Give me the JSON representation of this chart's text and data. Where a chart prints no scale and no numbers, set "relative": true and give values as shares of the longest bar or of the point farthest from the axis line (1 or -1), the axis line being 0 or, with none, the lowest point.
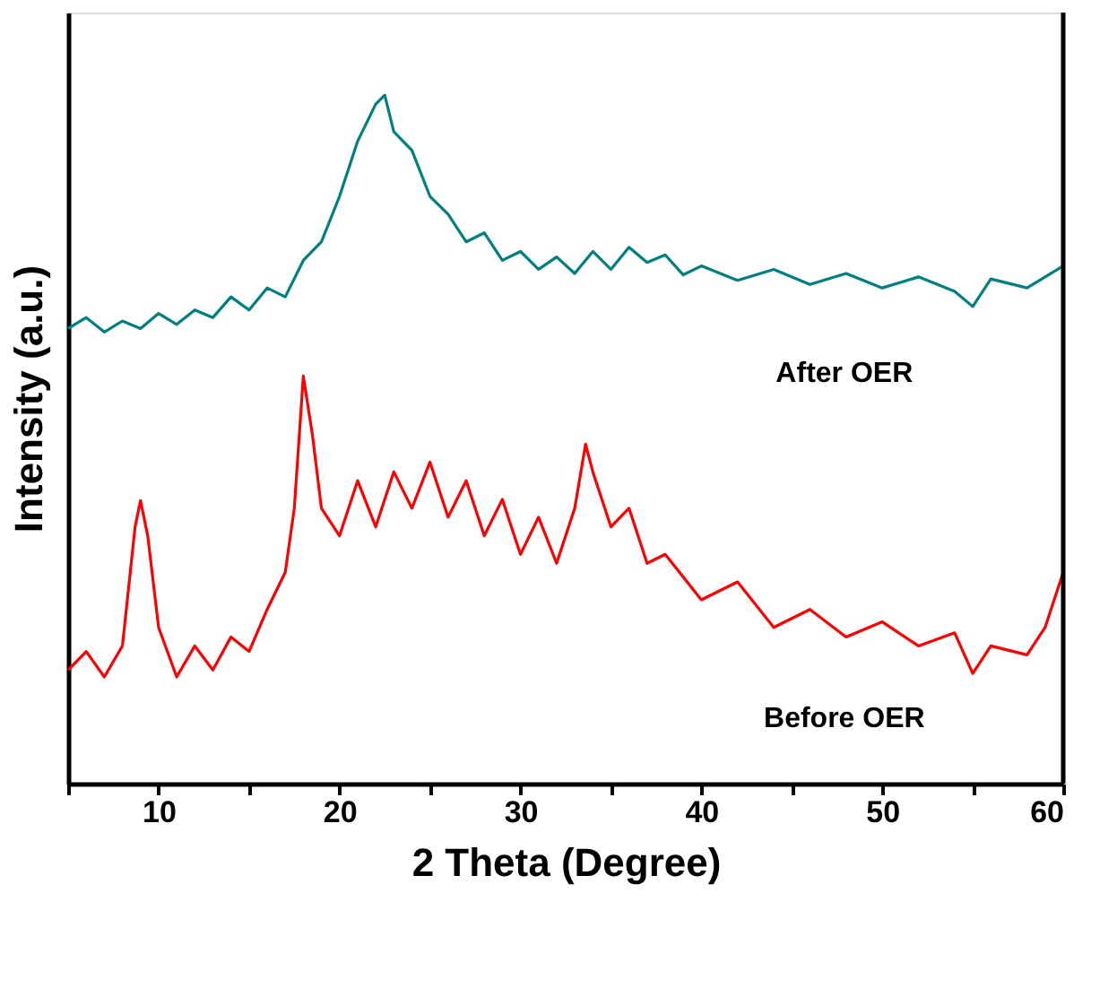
{
  "chart_data": {
    "type": "line",
    "xlabel": "2 Theta (Degree)",
    "ylabel": "Intensity (a.u.)",
    "relative": true,
    "xlim": [
      5,
      60
    ],
    "xticks": [
      {
        "value": 5,
        "label": null
      },
      10,
      {
        "value": 15,
        "label": null
      },
      20,
      {
        "value": 25,
        "label": null
      },
      30,
      {
        "value": 35,
        "label": null
      },
      40,
      {
        "value": 45,
        "label": null
      },
      50,
      {
        "value": 55,
        "label": null
      },
      60
    ],
    "grid": false,
    "marker": "none",
    "line_style": "solid",
    "series": [
      {
        "name": "After OER",
        "color": "#008080",
        "x": [
          5,
          6,
          7,
          8,
          9,
          10,
          11,
          12,
          13,
          14,
          15,
          16,
          17,
          18,
          19,
          20,
          21,
          22,
          22.5,
          23,
          24,
          25,
          26,
          27,
          28,
          29,
          30,
          31,
          32,
          33,
          34,
          35,
          36,
          37,
          38,
          39,
          40,
          42,
          44,
          46,
          48,
          50,
          52,
          54,
          55,
          56,
          58,
          60
        ],
        "values": [
          0.661,
          0.677,
          0.656,
          0.672,
          0.661,
          0.683,
          0.667,
          0.688,
          0.677,
          0.707,
          0.688,
          0.72,
          0.707,
          0.76,
          0.787,
          0.853,
          0.933,
          0.987,
          1,
          0.947,
          0.92,
          0.853,
          0.827,
          0.787,
          0.8,
          0.76,
          0.773,
          0.747,
          0.765,
          0.741,
          0.773,
          0.747,
          0.779,
          0.757,
          0.768,
          0.739,
          0.752,
          0.731,
          0.747,
          0.725,
          0.741,
          0.72,
          0.736,
          0.715,
          0.693,
          0.733,
          0.72,
          0.752
        ]
      },
      {
        "name": "Before OER",
        "color": "#ff0000",
        "x": [
          5,
          6,
          7,
          8,
          8.7,
          9,
          9.4,
          10,
          11,
          12,
          13,
          14,
          15,
          16,
          17,
          17.5,
          18,
          18.5,
          19,
          20,
          21,
          22,
          23,
          24,
          25,
          26,
          27,
          28,
          29,
          30,
          31,
          32,
          33,
          33.6,
          34,
          35,
          36,
          37,
          38,
          40,
          42,
          44,
          46,
          48,
          50,
          52,
          54,
          55,
          56,
          58,
          59,
          60
        ],
        "values": [
          0.165,
          0.192,
          0.155,
          0.2,
          0.373,
          0.411,
          0.36,
          0.227,
          0.155,
          0.2,
          0.165,
          0.213,
          0.192,
          0.253,
          0.307,
          0.4,
          0.592,
          0.507,
          0.4,
          0.36,
          0.44,
          0.373,
          0.453,
          0.4,
          0.467,
          0.387,
          0.44,
          0.36,
          0.413,
          0.333,
          0.387,
          0.32,
          0.4,
          0.493,
          0.453,
          0.373,
          0.4,
          0.32,
          0.333,
          0.267,
          0.293,
          0.227,
          0.253,
          0.213,
          0.235,
          0.2,
          0.219,
          0.16,
          0.2,
          0.187,
          0.227,
          0.307
        ]
      }
    ]
  }
}
